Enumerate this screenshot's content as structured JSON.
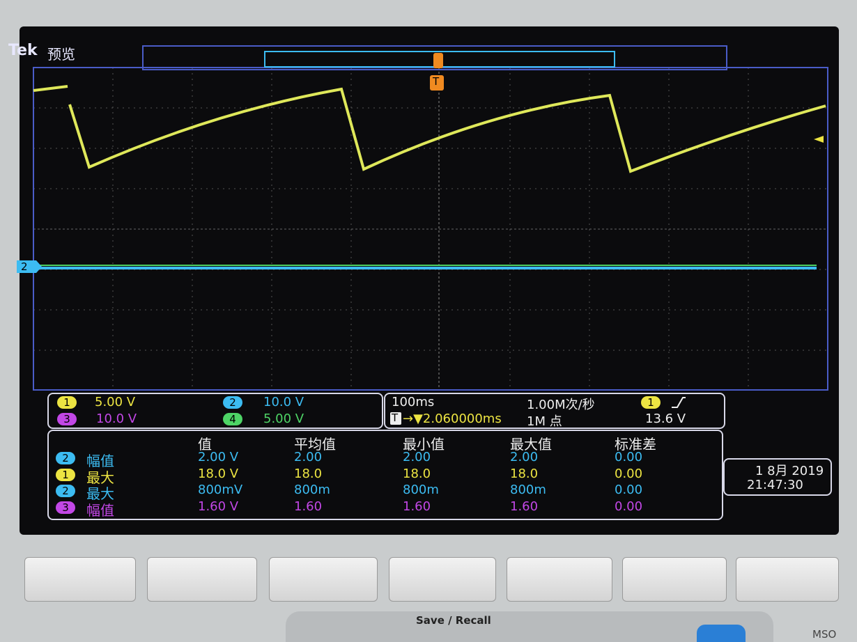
{
  "header": {
    "brand": "Tek",
    "mode": "预览"
  },
  "markers": {
    "trigger": "T",
    "channel2": "2"
  },
  "channels": [
    {
      "id": "1",
      "scale": "5.00 V"
    },
    {
      "id": "2",
      "scale": "10.0 V"
    },
    {
      "id": "3",
      "scale": "10.0 V"
    },
    {
      "id": "4",
      "scale": "5.00 V"
    }
  ],
  "timebase": {
    "scale": "100ms",
    "sample_rate": "1.00M次/秒",
    "trigger_marker": "T",
    "trigger_position": "→▼2.060000ms",
    "record_length": "1M 点",
    "trigger_source": "1",
    "trigger_level": "13.6 V"
  },
  "measurements": {
    "columns": [
      "值",
      "平均值",
      "最小值",
      "最大值",
      "标准差"
    ],
    "rows": [
      {
        "channel": "2",
        "name": "幅值",
        "cells": [
          "2.00 V",
          "2.00",
          "2.00",
          "2.00",
          "0.00"
        ]
      },
      {
        "channel": "1",
        "name": "最大",
        "cells": [
          "18.0 V",
          "18.0",
          "18.0",
          "18.0",
          "0.00"
        ]
      },
      {
        "channel": "2",
        "name": "最大",
        "cells": [
          "800mV",
          "800m",
          "800m",
          "800m",
          "0.00"
        ]
      },
      {
        "channel": "3",
        "name": "幅值",
        "cells": [
          "1.60 V",
          "1.60",
          "1.60",
          "1.60",
          "0.00"
        ]
      }
    ]
  },
  "datetime": {
    "date": "1 8月 2019",
    "time": "21:47:30"
  },
  "buttons": {
    "group": "Save / Recall",
    "model": "MSO"
  }
}
